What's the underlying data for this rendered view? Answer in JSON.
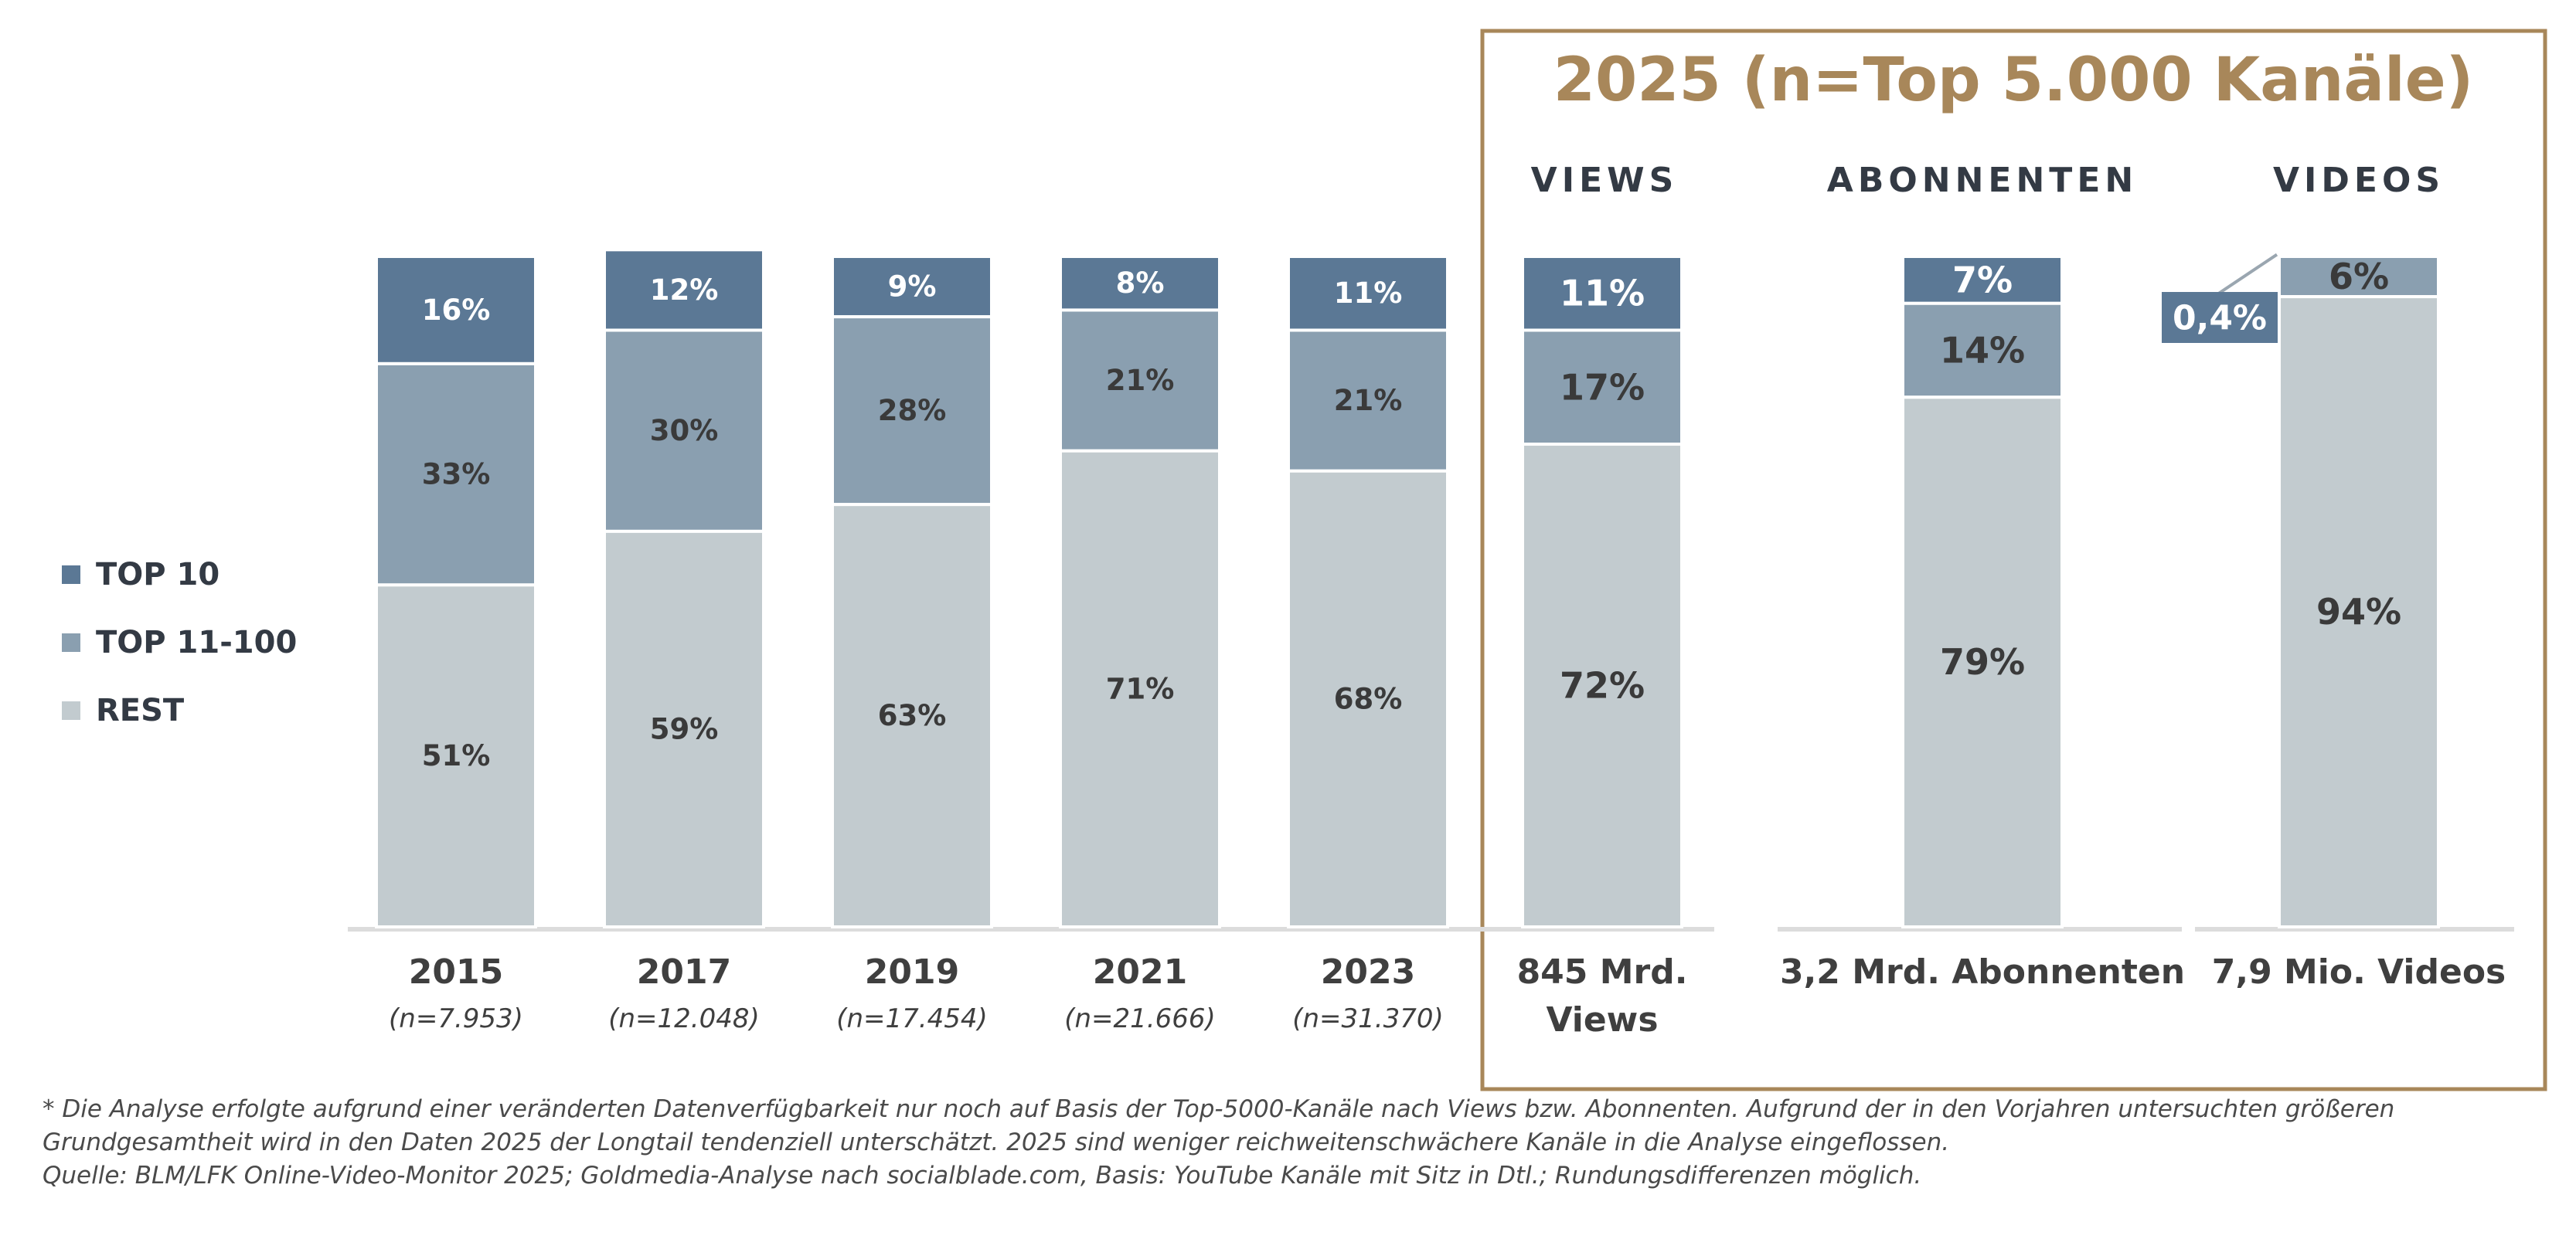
{
  "colors": {
    "top10": "#5b7895",
    "top11_100": "#8a9fb0",
    "rest": "#c2cbcf",
    "accent": "#a8875a",
    "axis": "#dcdcdc",
    "text": "#3f3f3f"
  },
  "legend": [
    {
      "label": "TOP 10",
      "color": "#5b7895"
    },
    {
      "label": "TOP 11-100",
      "color": "#8a9fb0"
    },
    {
      "label": "REST",
      "color": "#c2cbcf"
    }
  ],
  "highlight": {
    "title": "2025 (n=Top 5.000 Kanäle)",
    "headers": [
      "VIEWS",
      "ABONNENTEN",
      "VIDEOS"
    ]
  },
  "chart_data": {
    "type": "bar",
    "stacked": true,
    "normalized": true,
    "legend_position": "left",
    "categories": [
      "2015",
      "2017",
      "2019",
      "2021",
      "2023",
      "845 Mrd. Views",
      "3,2 Mrd. Abonnenten",
      "7,9 Mio. Videos"
    ],
    "category_lines": [
      [
        "2015"
      ],
      [
        "2017"
      ],
      [
        "2019"
      ],
      [
        "2021"
      ],
      [
        "2023"
      ],
      [
        "845 Mrd.",
        "Views"
      ],
      [
        "3,2 Mrd. Abonnenten"
      ],
      [
        "7,9 Mio. Videos"
      ]
    ],
    "category_sublabels": [
      "(n=7.953)",
      "(n=12.048)",
      "(n=17.454)",
      "(n=21.666)",
      "(n=31.370)",
      "",
      "",
      ""
    ],
    "series": [
      {
        "name": "TOP 10",
        "values": [
          16,
          12,
          9,
          8,
          11,
          11,
          7,
          0.4
        ],
        "labels": [
          "16%",
          "12%",
          "9%",
          "8%",
          "11%",
          "11%",
          "7%",
          "0,4%"
        ]
      },
      {
        "name": "TOP 11-100",
        "values": [
          33,
          30,
          28,
          21,
          21,
          17,
          14,
          6
        ],
        "labels": [
          "33%",
          "30%",
          "28%",
          "21%",
          "21%",
          "17%",
          "14%",
          "6%"
        ]
      },
      {
        "name": "REST",
        "values": [
          51,
          59,
          63,
          71,
          68,
          72,
          79,
          94
        ],
        "labels": [
          "51%",
          "59%",
          "63%",
          "71%",
          "68%",
          "72%",
          "79%",
          "94%"
        ]
      }
    ],
    "ylim": [
      0,
      100
    ]
  },
  "footnote": {
    "line1": "* Die Analyse erfolgte aufgrund einer veränderten Datenverfügbarkeit nur noch auf Basis der Top-5000-Kanäle nach Views bzw. Abonnenten. Aufgrund der in den Vorjahren untersuchten größeren",
    "line2": "Grundgesamtheit wird in den Daten 2025 der Longtail tendenziell unterschätzt. 2025 sind weniger reichweitenschwächere Kanäle in die Analyse eingeflossen.",
    "line3": "Quelle: BLM/LFK Online-Video-Monitor 2025; Goldmedia-Analyse nach socialblade.com, Basis: YouTube Kanäle mit Sitz in Dtl.; Rundungsdifferenzen möglich."
  }
}
